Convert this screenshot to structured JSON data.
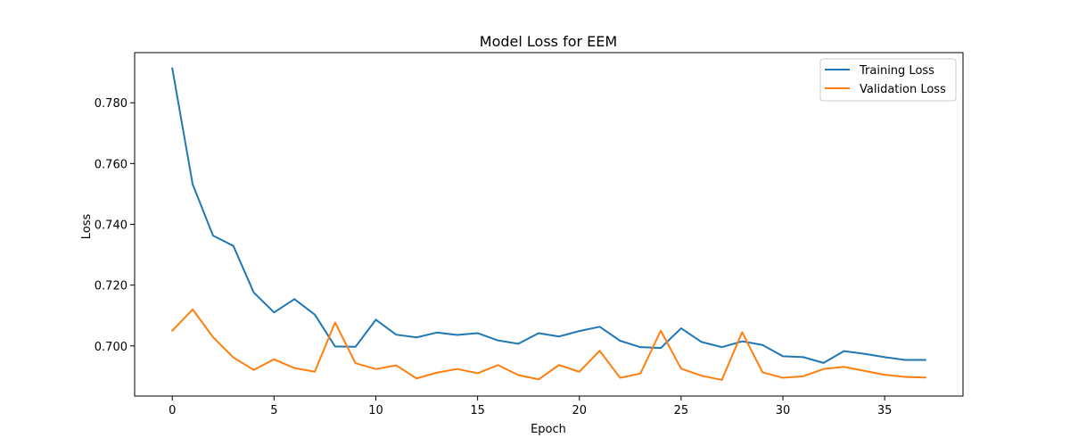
{
  "chart_data": {
    "type": "line",
    "title": "Model Loss for EEM",
    "xlabel": "Epoch",
    "ylabel": "Loss",
    "xlim": [
      -1.85,
      38.85
    ],
    "ylim": [
      0.6835,
      0.7965
    ],
    "xticks": [
      0,
      5,
      10,
      15,
      20,
      25,
      30,
      35
    ],
    "yticks": [
      0.7,
      0.72,
      0.74,
      0.76,
      0.78
    ],
    "ytick_labels": [
      "0.700",
      "0.720",
      "0.740",
      "0.760",
      "0.780"
    ],
    "legend_position": "top-right",
    "grid": false,
    "x": [
      0,
      1,
      2,
      3,
      4,
      5,
      6,
      7,
      8,
      9,
      10,
      11,
      12,
      13,
      14,
      15,
      16,
      17,
      18,
      19,
      20,
      21,
      22,
      23,
      24,
      25,
      26,
      27,
      28,
      29,
      30,
      31,
      32,
      33,
      34,
      35,
      36,
      37
    ],
    "series": [
      {
        "name": "Training Loss",
        "color": "#1f77b4",
        "values": [
          0.7913,
          0.7532,
          0.7363,
          0.7329,
          0.7176,
          0.711,
          0.7154,
          0.7103,
          0.6998,
          0.6997,
          0.7086,
          0.7037,
          0.7028,
          0.7044,
          0.7036,
          0.7042,
          0.7018,
          0.7007,
          0.7042,
          0.7031,
          0.7049,
          0.7063,
          0.7017,
          0.6996,
          0.6993,
          0.7058,
          0.7013,
          0.6996,
          0.7015,
          0.7003,
          0.6966,
          0.6963,
          0.6944,
          0.6983,
          0.6974,
          0.6963,
          0.6954,
          0.6954
        ]
      },
      {
        "name": "Validation Loss",
        "color": "#ff7f0e",
        "values": [
          0.705,
          0.712,
          0.7029,
          0.6962,
          0.6921,
          0.6956,
          0.6927,
          0.6915,
          0.7077,
          0.6943,
          0.6924,
          0.6936,
          0.6893,
          0.6912,
          0.6924,
          0.691,
          0.6937,
          0.6904,
          0.689,
          0.6937,
          0.6915,
          0.6984,
          0.6895,
          0.6909,
          0.705,
          0.6925,
          0.6902,
          0.6888,
          0.7045,
          0.6913,
          0.6895,
          0.69,
          0.6924,
          0.6931,
          0.6918,
          0.6905,
          0.6898,
          0.6896
        ]
      }
    ]
  }
}
